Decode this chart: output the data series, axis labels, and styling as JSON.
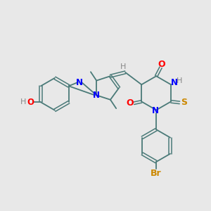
{
  "bg_color": "#e8e8e8",
  "bond_color": "#4a7a78",
  "atom_colors": {
    "O": "#ff0000",
    "N": "#0000ff",
    "S": "#cc8800",
    "Br": "#cc8800",
    "H": "#888888",
    "C": "#4a7a78"
  },
  "figsize": [
    3.0,
    3.0
  ],
  "dpi": 100
}
